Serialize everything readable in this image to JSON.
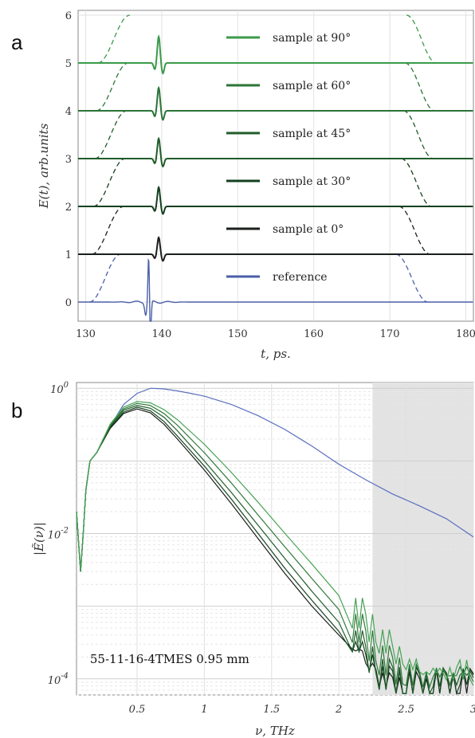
{
  "panel_a_label": "a",
  "panel_b_label": "b",
  "chart_data": [
    {
      "type": "line",
      "panel": "a",
      "xlabel": "t, ps.",
      "ylabel": "E(t), arb.units",
      "xlim": [
        129,
        181
      ],
      "ylim": [
        -0.4,
        6.1
      ],
      "xticks": [
        130,
        140,
        150,
        160,
        170,
        180
      ],
      "yticks": [
        0,
        1,
        2,
        3,
        4,
        5,
        6
      ],
      "grid": true,
      "legend_position": "center",
      "pulse_center": 139.6,
      "reference_pulse_center": 138.4,
      "series": [
        {
          "name": "reference",
          "offset": 0,
          "color": "#4a5fa8",
          "pulse_amplitude": -0.85,
          "window": [
            130.5,
            134.6,
            170.8,
            175.0
          ]
        },
        {
          "name": "sample at 0°",
          "offset": 1,
          "color": "#1b1f1b",
          "pulse_amplitude": 0.35,
          "window": [
            130.8,
            135.0,
            171.2,
            175.3
          ]
        },
        {
          "name": "sample at 30°",
          "offset": 2,
          "color": "#12401e",
          "pulse_amplitude": 0.4,
          "window": [
            131.0,
            135.2,
            171.5,
            175.5
          ]
        },
        {
          "name": "sample at 45°",
          "offset": 3,
          "color": "#1f5d2a",
          "pulse_amplitude": 0.42,
          "window": [
            131.2,
            135.4,
            171.8,
            175.7
          ]
        },
        {
          "name": "sample at 60°",
          "offset": 4,
          "color": "#2a7436",
          "pulse_amplitude": 0.48,
          "window": [
            131.4,
            135.6,
            172.0,
            175.9
          ]
        },
        {
          "name": "sample at 90°",
          "offset": 5,
          "color": "#3b9a4a",
          "pulse_amplitude": 0.55,
          "window": [
            131.6,
            135.8,
            172.2,
            176.1
          ]
        }
      ]
    },
    {
      "type": "line",
      "panel": "b",
      "xlabel": "ν, THz",
      "ylabel": "|Ẽ(ν)|",
      "xlim": [
        0.05,
        3.0
      ],
      "ylim": [
        6e-05,
        1.2
      ],
      "yscale": "log",
      "xticks": [
        0.5,
        1,
        1.5,
        2,
        2.5,
        3
      ],
      "xtick_labels": [
        "0.5",
        "1",
        "1.5",
        "2",
        "2.5",
        "3"
      ],
      "yticks": [
        0.0001,
        0.01,
        1
      ],
      "ytick_labels": [
        {
          "base": "10",
          "exp": "-4"
        },
        {
          "base": "10",
          "exp": "-2"
        },
        {
          "base": "10",
          "exp": "0"
        }
      ],
      "grid": true,
      "shaded_region": [
        2.25,
        3.0
      ],
      "annotation": "55-11-16-4TMES 0.95 mm",
      "series": [
        {
          "name": "reference",
          "color": "#5b6fbf",
          "x": [
            0.05,
            0.08,
            0.1,
            0.12,
            0.15,
            0.2,
            0.3,
            0.4,
            0.5,
            0.6,
            0.7,
            0.8,
            0.9,
            1.0,
            1.2,
            1.4,
            1.6,
            1.8,
            2.0,
            2.2,
            2.4,
            2.6,
            2.8,
            3.0
          ],
          "y": [
            0.02,
            0.003,
            0.01,
            0.04,
            0.1,
            0.13,
            0.3,
            0.6,
            0.85,
            1.0,
            0.98,
            0.92,
            0.85,
            0.78,
            0.6,
            0.42,
            0.27,
            0.16,
            0.09,
            0.055,
            0.035,
            0.024,
            0.016,
            0.009
          ]
        },
        {
          "name": "sample at 0°",
          "color": "#1b1f1b",
          "x": [
            0.05,
            0.08,
            0.1,
            0.12,
            0.15,
            0.2,
            0.3,
            0.4,
            0.5,
            0.6,
            0.7,
            0.8,
            1.0,
            1.2,
            1.4,
            1.6,
            1.8,
            2.0,
            2.1,
            2.2,
            2.3,
            2.4,
            2.5,
            2.6,
            2.7,
            2.8,
            2.9,
            3.0
          ],
          "y": [
            0.02,
            0.003,
            0.01,
            0.04,
            0.1,
            0.13,
            0.28,
            0.45,
            0.52,
            0.46,
            0.32,
            0.2,
            0.075,
            0.026,
            0.0085,
            0.0028,
            0.001,
            0.0004,
            0.00025,
            0.00015,
            0.0001,
            8e-05,
            9e-05,
            7e-05,
            9e-05,
            8e-05,
            0.0001,
            9e-05
          ]
        },
        {
          "name": "sample at 30°",
          "color": "#14421f",
          "x": [
            0.05,
            0.08,
            0.1,
            0.12,
            0.15,
            0.2,
            0.3,
            0.4,
            0.5,
            0.6,
            0.7,
            0.8,
            1.0,
            1.2,
            1.4,
            1.6,
            1.8,
            2.0,
            2.1,
            2.2,
            2.3,
            2.4,
            2.5,
            2.6,
            2.7,
            2.8,
            2.9,
            3.0
          ],
          "y": [
            0.02,
            0.003,
            0.01,
            0.04,
            0.1,
            0.13,
            0.29,
            0.47,
            0.55,
            0.49,
            0.35,
            0.22,
            0.085,
            0.03,
            0.01,
            0.0033,
            0.0012,
            0.00045,
            0.00028,
            0.00017,
            0.00011,
            9e-05,
            0.0001,
            8e-05,
            0.0001,
            9e-05,
            0.00011,
            0.0001
          ]
        },
        {
          "name": "sample at 45°",
          "color": "#1f5d2a",
          "x": [
            0.05,
            0.08,
            0.1,
            0.12,
            0.15,
            0.2,
            0.3,
            0.4,
            0.5,
            0.6,
            0.7,
            0.8,
            1.0,
            1.2,
            1.4,
            1.6,
            1.8,
            2.0,
            2.1,
            2.2,
            2.3,
            2.4,
            2.5,
            2.6,
            2.7,
            2.8,
            2.9,
            3.0
          ],
          "y": [
            0.02,
            0.003,
            0.01,
            0.04,
            0.1,
            0.13,
            0.3,
            0.5,
            0.58,
            0.53,
            0.4,
            0.26,
            0.1,
            0.037,
            0.013,
            0.0045,
            0.0016,
            0.0006,
            0.00035,
            0.0002,
            0.00013,
            0.0001,
            0.00011,
            9e-05,
            0.00011,
            0.0001,
            0.00012,
            0.00011
          ]
        },
        {
          "name": "sample at 60°",
          "color": "#2f7a3a",
          "x": [
            0.05,
            0.08,
            0.1,
            0.12,
            0.15,
            0.2,
            0.3,
            0.4,
            0.5,
            0.6,
            0.7,
            0.8,
            1.0,
            1.2,
            1.4,
            1.6,
            1.8,
            2.0,
            2.1,
            2.2,
            2.3,
            2.4,
            2.5,
            2.6,
            2.7,
            2.8,
            2.9,
            3.0
          ],
          "y": [
            0.02,
            0.003,
            0.01,
            0.04,
            0.1,
            0.13,
            0.31,
            0.52,
            0.62,
            0.58,
            0.45,
            0.31,
            0.13,
            0.05,
            0.018,
            0.0065,
            0.0024,
            0.0009,
            0.00055,
            0.00032,
            0.0002,
            0.00014,
            0.00012,
            0.0001,
            0.00012,
            0.00011,
            0.00013,
            0.00012
          ]
        },
        {
          "name": "sample at 90°",
          "color": "#46a355",
          "x": [
            0.05,
            0.08,
            0.1,
            0.12,
            0.15,
            0.2,
            0.3,
            0.4,
            0.5,
            0.6,
            0.7,
            0.8,
            1.0,
            1.2,
            1.4,
            1.6,
            1.8,
            2.0,
            2.1,
            2.2,
            2.3,
            2.4,
            2.5,
            2.6,
            2.7,
            2.8,
            2.9,
            3.0
          ],
          "y": [
            0.02,
            0.003,
            0.01,
            0.04,
            0.1,
            0.13,
            0.32,
            0.55,
            0.66,
            0.63,
            0.51,
            0.37,
            0.17,
            0.07,
            0.027,
            0.01,
            0.0038,
            0.0014,
            0.0009,
            0.00055,
            0.00035,
            0.00022,
            0.00016,
            0.00012,
            0.00013,
            0.00012,
            0.00014,
            0.00013
          ]
        }
      ]
    }
  ]
}
